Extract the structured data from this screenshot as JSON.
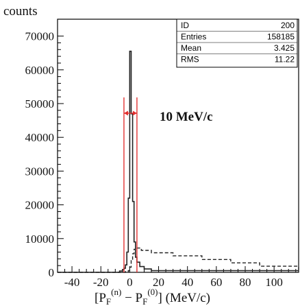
{
  "chart_data": {
    "type": "histogram",
    "ylabel": "counts",
    "xlabel_parts": {
      "open": "[P",
      "sub1": "F",
      "sup1": "(n)",
      "minus": " − P",
      "sub2": "F",
      "sup2": "(0)",
      "close": "] (MeV/c)"
    },
    "xlim": [
      -50,
      117
    ],
    "ylim": [
      0,
      75000
    ],
    "x_ticks": [
      -40,
      -20,
      0,
      20,
      40,
      60,
      80,
      100
    ],
    "y_ticks": [
      0,
      10000,
      20000,
      30000,
      40000,
      50000,
      60000,
      70000
    ],
    "series": [
      {
        "style": "solid",
        "x": [
          -50,
          -10,
          -7,
          -5,
          -4,
          -3,
          -2,
          -1,
          0,
          1,
          2,
          3,
          4,
          5,
          7,
          10,
          15,
          117
        ],
        "y": [
          0,
          0,
          400,
          800,
          1200,
          2200,
          6000,
          22000,
          65500,
          47000,
          21000,
          9000,
          4500,
          3000,
          1700,
          1000,
          500,
          500
        ]
      },
      {
        "style": "dashed",
        "x": [
          -50,
          -5,
          -3,
          -1,
          0,
          1,
          2,
          3,
          4,
          5,
          8,
          15,
          30,
          50,
          70,
          90,
          117
        ],
        "y": [
          0,
          0,
          200,
          500,
          1500,
          3500,
          5500,
          6800,
          7300,
          7200,
          6500,
          5800,
          4900,
          3800,
          2800,
          1800,
          800
        ]
      }
    ],
    "markers": {
      "lines_x": [
        -4,
        5
      ],
      "color": "#e23030",
      "arrow_label": "10 MeV/c"
    },
    "stats_box": [
      {
        "label": "ID",
        "value": "200"
      },
      {
        "label": "Entries",
        "value": "158185"
      },
      {
        "label": "Mean",
        "value": "3.425"
      },
      {
        "label": "RMS",
        "value": "11.22"
      }
    ]
  }
}
